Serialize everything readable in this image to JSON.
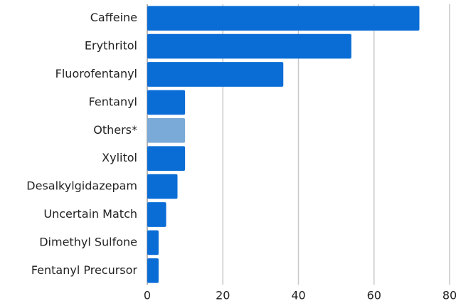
{
  "chart_data": {
    "type": "hbar",
    "categories": [
      "Caffeine",
      "Erythritol",
      "Fluorofentanyl",
      "Fentanyl",
      "Others*",
      "Xylitol",
      "Desalkylgidazepam",
      "Uncertain Match",
      "Dimethyl Sulfone",
      "Fentanyl Precursor"
    ],
    "values": [
      72,
      54,
      36,
      10,
      10,
      10,
      8,
      5,
      3,
      3
    ],
    "colors": [
      "#0a6dd6",
      "#0a6dd6",
      "#0a6dd6",
      "#0a6dd6",
      "#7aaad8",
      "#0a6dd6",
      "#0a6dd6",
      "#0a6dd6",
      "#0a6dd6",
      "#0a6dd6"
    ],
    "xlim": [
      0,
      80
    ],
    "xticks": [
      0,
      20,
      40,
      60,
      80
    ],
    "grid": true
  }
}
